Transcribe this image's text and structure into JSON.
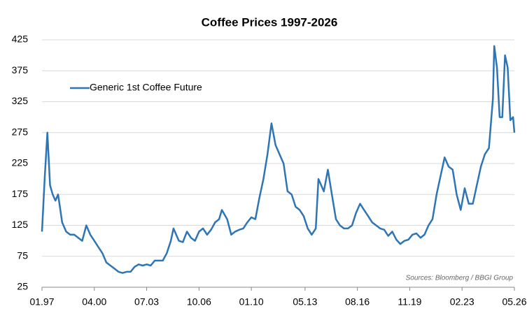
{
  "chart_data": {
    "type": "line",
    "title": "Coffee Prices 1997-2026",
    "x": [
      "1997-01",
      "1997-03",
      "1997-05",
      "1997-07",
      "1997-09",
      "1997-11",
      "1998-01",
      "1998-04",
      "1998-07",
      "1998-10",
      "1999-01",
      "1999-04",
      "1999-07",
      "1999-10",
      "2000-01",
      "2000-04",
      "2000-07",
      "2000-10",
      "2001-01",
      "2001-04",
      "2001-07",
      "2001-10",
      "2002-01",
      "2002-04",
      "2002-07",
      "2002-10",
      "2003-01",
      "2003-04",
      "2003-07",
      "2003-10",
      "2004-01",
      "2004-04",
      "2004-07",
      "2004-10",
      "2005-01",
      "2005-03",
      "2005-07",
      "2005-10",
      "2006-01",
      "2006-04",
      "2006-07",
      "2006-10",
      "2007-01",
      "2007-04",
      "2007-07",
      "2007-10",
      "2008-01",
      "2008-03",
      "2008-07",
      "2008-10",
      "2009-01",
      "2009-04",
      "2009-07",
      "2009-10",
      "2010-01",
      "2010-04",
      "2010-07",
      "2010-10",
      "2011-01",
      "2011-04",
      "2011-07",
      "2011-10",
      "2012-01",
      "2012-04",
      "2012-07",
      "2012-10",
      "2013-01",
      "2013-04",
      "2013-07",
      "2013-10",
      "2014-01",
      "2014-03",
      "2014-07",
      "2014-10",
      "2015-01",
      "2015-04",
      "2015-07",
      "2015-10",
      "2016-01",
      "2016-04",
      "2016-07",
      "2016-10",
      "2017-01",
      "2017-04",
      "2017-07",
      "2017-10",
      "2018-01",
      "2018-04",
      "2018-07",
      "2018-10",
      "2019-01",
      "2019-04",
      "2019-07",
      "2019-10",
      "2020-01",
      "2020-04",
      "2020-07",
      "2020-10",
      "2021-01",
      "2021-04",
      "2021-07",
      "2021-10",
      "2022-01",
      "2022-04",
      "2022-07",
      "2022-10",
      "2023-01",
      "2023-04",
      "2023-07",
      "2023-10",
      "2024-01",
      "2024-04",
      "2024-07",
      "2024-10",
      "2025-01",
      "2025-02",
      "2025-04",
      "2025-06",
      "2025-08",
      "2025-10",
      "2025-12",
      "2026-02",
      "2026-04",
      "2026-05"
    ],
    "series": [
      {
        "name": "Generic 1st Coffee Future",
        "color": "#2e75b6",
        "values": [
          115,
          200,
          275,
          190,
          175,
          165,
          175,
          130,
          115,
          110,
          110,
          105,
          100,
          125,
          110,
          100,
          90,
          80,
          65,
          60,
          55,
          50,
          48,
          50,
          50,
          58,
          62,
          60,
          62,
          60,
          68,
          68,
          68,
          80,
          100,
          120,
          100,
          98,
          115,
          105,
          100,
          115,
          120,
          110,
          118,
          130,
          135,
          150,
          135,
          110,
          115,
          118,
          120,
          130,
          138,
          135,
          170,
          200,
          240,
          290,
          255,
          240,
          225,
          180,
          175,
          155,
          150,
          140,
          120,
          110,
          120,
          200,
          180,
          215,
          175,
          135,
          125,
          120,
          120,
          125,
          145,
          160,
          150,
          140,
          130,
          125,
          120,
          118,
          108,
          115,
          102,
          95,
          100,
          102,
          110,
          112,
          105,
          110,
          125,
          135,
          175,
          205,
          235,
          220,
          215,
          175,
          150,
          185,
          160,
          160,
          190,
          220,
          240,
          250,
          330,
          415,
          380,
          300,
          300,
          400,
          380,
          295,
          300,
          275
        ]
      }
    ],
    "xlim": [
      "1997-01",
      "2026-05"
    ],
    "xticks": [
      {
        "value": "1997-01",
        "label": "01.97"
      },
      {
        "value": "2000-04",
        "label": "04.00"
      },
      {
        "value": "2003-07",
        "label": "07.03"
      },
      {
        "value": "2006-10",
        "label": "10.06"
      },
      {
        "value": "2010-01",
        "label": "01.10"
      },
      {
        "value": "2013-05",
        "label": "05.13"
      },
      {
        "value": "2016-08",
        "label": "08.16"
      },
      {
        "value": "2019-11",
        "label": "11.19"
      },
      {
        "value": "2023-02",
        "label": "02.23"
      },
      {
        "value": "2026-05",
        "label": "05.26"
      }
    ],
    "ylim": [
      25,
      425
    ],
    "yticks": [
      25,
      75,
      125,
      175,
      225,
      275,
      325,
      375,
      425
    ],
    "grid": true,
    "legend": "upper left",
    "annotation": "Sources: Bloomberg / BBGI Group"
  }
}
